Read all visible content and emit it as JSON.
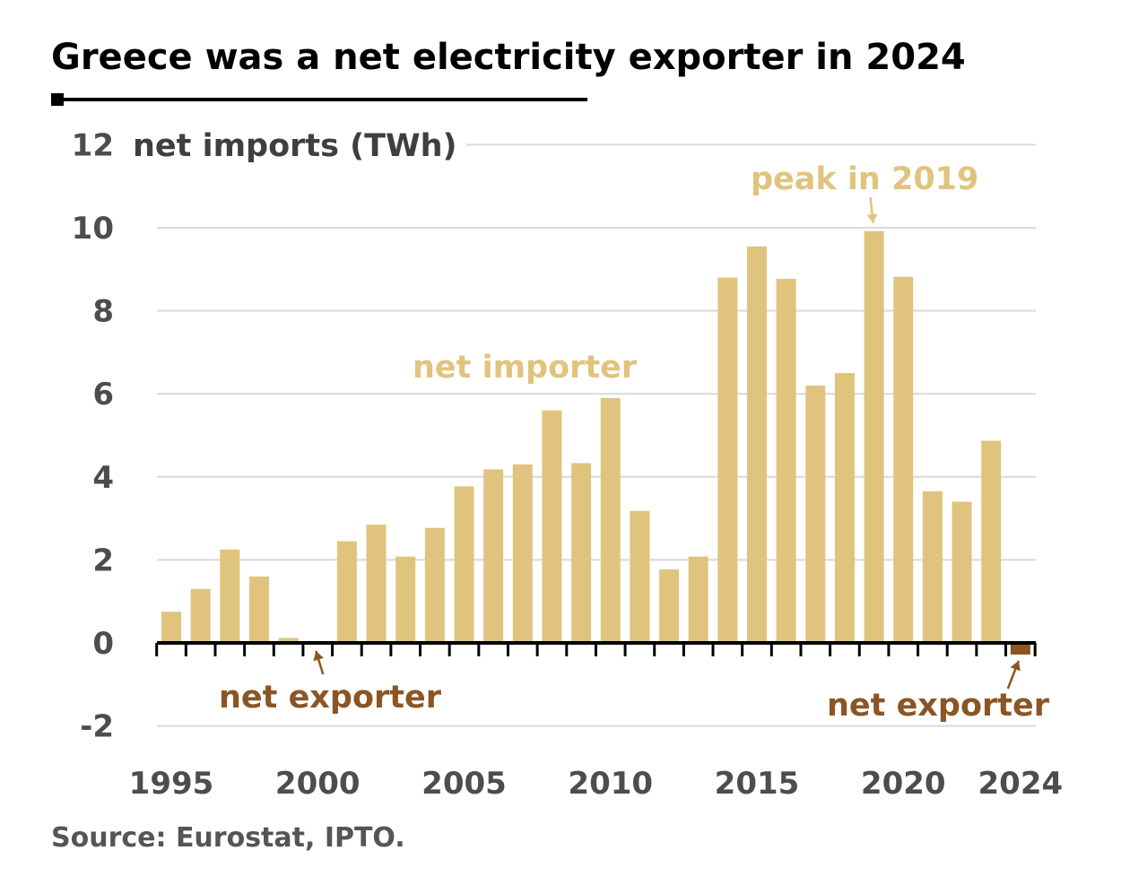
{
  "colors": {
    "importer": "#e0c47e",
    "exporter": "#8b5524",
    "grid": "#d9d9d9",
    "axis": "#000000",
    "text": "#4d4d4d"
  },
  "chart_data": {
    "type": "bar",
    "title": "Greece was a net electricity exporter in 2024",
    "ylabel": "net imports (TWh)",
    "source": "Source: Eurostat, IPTO.",
    "ylim": [
      -2,
      12
    ],
    "yticks": [
      12,
      10,
      8,
      6,
      4,
      2,
      0,
      -2
    ],
    "xtick_labels": [
      "1995",
      "2000",
      "2005",
      "2010",
      "2015",
      "2020",
      "2024"
    ],
    "grid": true,
    "categories": [
      "1995",
      "1996",
      "1997",
      "1998",
      "1999",
      "2000",
      "2001",
      "2002",
      "2003",
      "2004",
      "2005",
      "2006",
      "2007",
      "2008",
      "2009",
      "2010",
      "2011",
      "2012",
      "2013",
      "2014",
      "2015",
      "2016",
      "2017",
      "2018",
      "2019",
      "2020",
      "2021",
      "2022",
      "2023",
      "2024"
    ],
    "values": [
      0.75,
      1.3,
      2.25,
      1.6,
      0.12,
      0.0,
      2.45,
      2.85,
      2.08,
      2.77,
      3.77,
      4.18,
      4.3,
      5.6,
      4.33,
      5.9,
      3.18,
      1.77,
      2.08,
      8.8,
      9.55,
      8.77,
      6.2,
      6.5,
      9.92,
      8.82,
      3.65,
      3.4,
      4.87,
      -0.28
    ],
    "annotations": [
      {
        "text": "net importer",
        "kind": "importer"
      },
      {
        "text": "peak in 2019",
        "kind": "importer",
        "target": "2019"
      },
      {
        "text": "net exporter",
        "kind": "exporter",
        "target": "2000"
      },
      {
        "text": "net exporter",
        "kind": "exporter",
        "target": "2024"
      }
    ]
  }
}
